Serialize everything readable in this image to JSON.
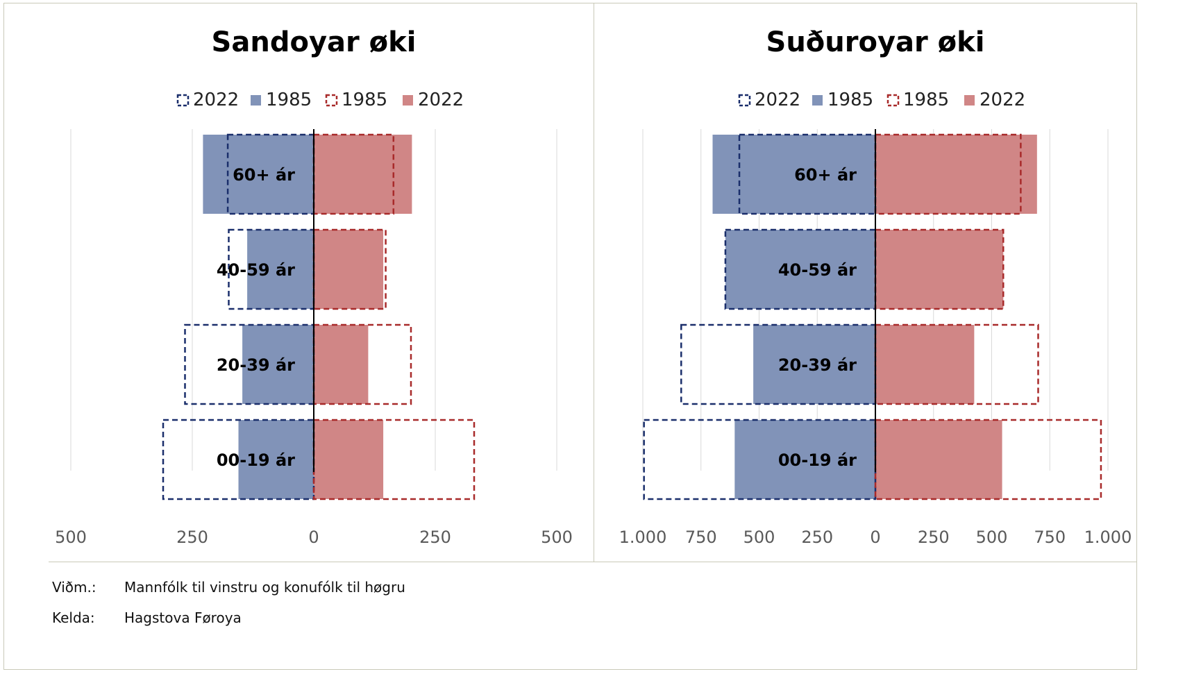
{
  "colors": {
    "male_1985": "#8193b8",
    "female_2022": "#d08686",
    "male_2022_outline": "#1a2e6b",
    "female_1985_outline": "#a82a2a",
    "grid": "#d9d9d9",
    "axis": "#000000"
  },
  "chart_data": [
    {
      "type": "bar",
      "orientation": "horizontal population pyramid",
      "title": "Sandoyar øki",
      "legend": [
        "2022",
        "1985",
        "1985",
        "2022"
      ],
      "categories": [
        "60+ ár",
        "40-59 ár",
        "20-39 ár",
        "00-19 ár"
      ],
      "series": [
        {
          "name": "2022",
          "side": "left",
          "style": "dashed-outline",
          "values": [
            -177,
            -175,
            -265,
            -310
          ]
        },
        {
          "name": "1985",
          "side": "left",
          "style": "filled",
          "values": [
            -228,
            -137,
            -147,
            -155
          ]
        },
        {
          "name": "1985",
          "side": "right",
          "style": "dashed-outline",
          "values": [
            164,
            148,
            200,
            330
          ]
        },
        {
          "name": "2022",
          "side": "right",
          "style": "filled",
          "values": [
            202,
            143,
            112,
            143
          ]
        }
      ],
      "xlim": [
        -500,
        500
      ],
      "xticks": [
        -500,
        -250,
        0,
        250,
        500
      ],
      "xtick_labels": [
        "500",
        "250",
        "0",
        "250",
        "500"
      ],
      "grid": true,
      "legend_position": "top"
    },
    {
      "type": "bar",
      "orientation": "horizontal population pyramid",
      "title": "Suðuroyar øki",
      "legend": [
        "2022",
        "1985",
        "1985",
        "2022"
      ],
      "categories": [
        "60+ ár",
        "40-59 ár",
        "20-39 ár",
        "00-19 ár"
      ],
      "series": [
        {
          "name": "2022",
          "side": "left",
          "style": "dashed-outline",
          "values": [
            -585,
            -645,
            -835,
            -995
          ]
        },
        {
          "name": "1985",
          "side": "left",
          "style": "filled",
          "values": [
            -700,
            -645,
            -525,
            -605
          ]
        },
        {
          "name": "1985",
          "side": "right",
          "style": "dashed-outline",
          "values": [
            625,
            550,
            700,
            970
          ]
        },
        {
          "name": "2022",
          "side": "right",
          "style": "filled",
          "values": [
            695,
            550,
            425,
            545
          ]
        }
      ],
      "xlim": [
        -1000,
        1000
      ],
      "xticks": [
        -1000,
        -750,
        -500,
        -250,
        0,
        250,
        500,
        750,
        1000
      ],
      "xtick_labels": [
        "1.000",
        "750",
        "500",
        "250",
        "0",
        "250",
        "500",
        "750",
        "1.000"
      ],
      "grid": true,
      "legend_position": "top"
    }
  ],
  "notes": {
    "note_label": "Viðm.:",
    "note_text": "Mannfólk til vinstru og konufólk til høgru",
    "source_label": "Kelda:",
    "source_text": "Hagstova Føroya"
  }
}
